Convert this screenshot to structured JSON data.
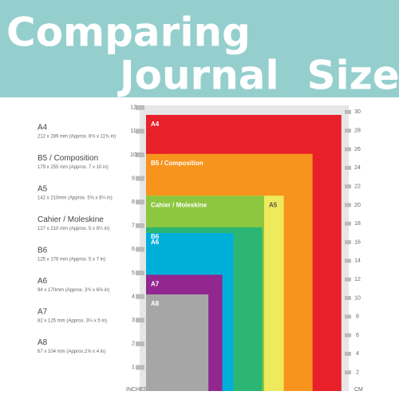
{
  "header": {
    "title_lines": [
      "Comparing",
      "Journal  Sizes"
    ]
  },
  "chart_data": {
    "type": "nested-rectangles",
    "ylabel": "INCHES",
    "y2label": "CM",
    "ylim": [
      0,
      12
    ],
    "yticks": [
      1,
      2,
      3,
      4,
      5,
      6,
      7,
      8,
      9,
      10,
      11,
      12
    ],
    "y2lim": [
      0,
      30.48
    ],
    "y2ticks": [
      2,
      4,
      6,
      8,
      10,
      12,
      14,
      16,
      18,
      20,
      22,
      24,
      26,
      28,
      30
    ],
    "series": [
      {
        "name": "A4",
        "description": "212 x 289 mm (Approx. 8⅓ x 11⅜ in)",
        "color": "#e8202a",
        "text_color": "#fff",
        "width": 8.27,
        "height": 11.69
      },
      {
        "name": "B5 / Composition",
        "description": "179 x 255 mm (Approx. 7 x 10 in)",
        "color": "#f7941d",
        "text_color": "#fff",
        "width": 7.05,
        "height": 10.04
      },
      {
        "name": "A5",
        "description": "142 x 210mm (Approx. 5⅝ x 8¼ in)",
        "color": "#eeea5b",
        "text_color": "#555",
        "width": 5.83,
        "height": 8.27
      },
      {
        "name": "Cahier / Moleskine",
        "description": "127 x 210 mm (Approx. 5 x 8¼ in)",
        "color": "#8dc63f",
        "text_color": "#fff",
        "width": 5.0,
        "height": 8.27
      },
      {
        "name": "B6",
        "description": "125 x 176 mm (Approx. 5 x 7 in)",
        "color": "#2bb673",
        "text_color": "#fff",
        "width": 4.92,
        "height": 6.93
      },
      {
        "name": "A6",
        "description": "94 x 170mm (Approx. 3¾ x 6⅔ in)",
        "color": "#00aeda",
        "text_color": "#fff",
        "width": 3.7,
        "height": 6.69
      },
      {
        "name": "A7",
        "description": "82 x 125 mm (Approx. 3¼ x 5 in)",
        "color": "#92278f",
        "text_color": "#fff",
        "width": 3.23,
        "height": 4.92
      },
      {
        "name": "A8",
        "description": "67 x 104 mm (Approx.2⅝ x 4 in)",
        "color": "#a6a6a6",
        "text_color": "#fff",
        "width": 2.64,
        "height": 4.09
      }
    ],
    "list_order": [
      0,
      1,
      2,
      3,
      4,
      5,
      6,
      7
    ]
  }
}
